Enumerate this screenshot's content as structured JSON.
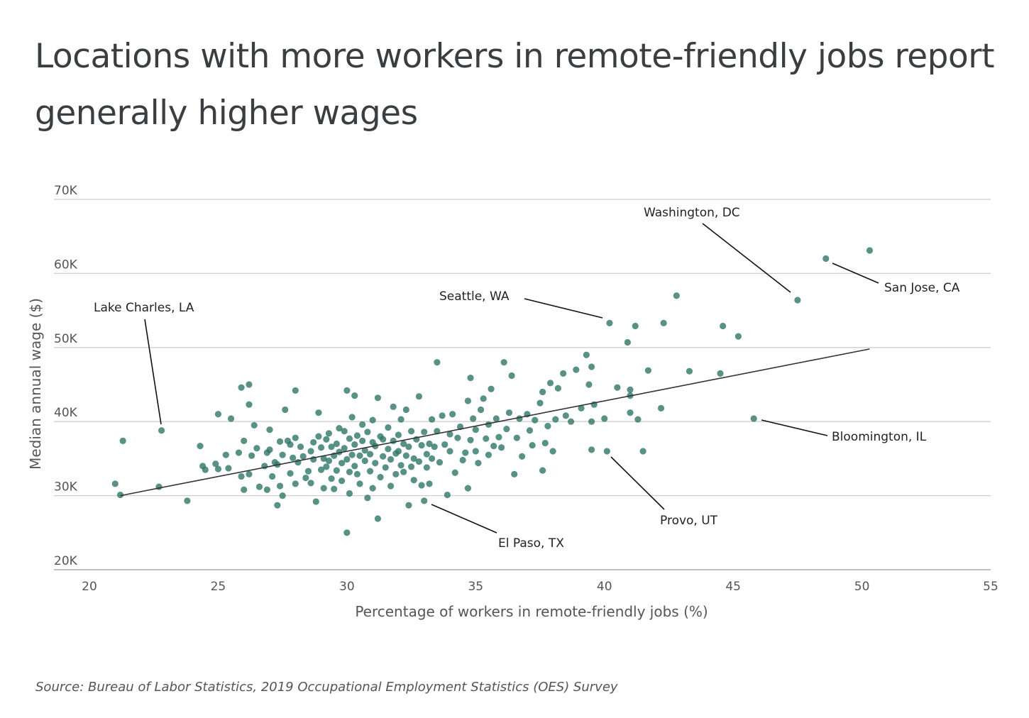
{
  "title": "Locations with more workers in remote-friendly jobs report generally higher wages",
  "source": "Source: Bureau of Labor Statistics, 2019 Occupational Employment Statistics (OES) Survey",
  "chart_data": {
    "type": "scatter",
    "xlabel": "Percentage of workers in remote-friendly jobs (%)",
    "ylabel": "Median annual wage ($)",
    "xlim": [
      20,
      55
    ],
    "ylim": [
      20000,
      70000
    ],
    "x_ticks": [
      20,
      25,
      30,
      35,
      40,
      45,
      50,
      55
    ],
    "x_tick_labels": [
      "20",
      "25",
      "30",
      "35",
      "40",
      "45",
      "50",
      "55"
    ],
    "y_ticks": [
      20000,
      30000,
      40000,
      50000,
      60000,
      70000
    ],
    "y_tick_labels": [
      "20K",
      "30K",
      "40K",
      "50K",
      "60K",
      "70K"
    ],
    "grid": "horizontal",
    "point_color": "#2e7566",
    "trend_color": "#333333",
    "trendline": {
      "x": [
        21.2,
        50.3
      ],
      "y": [
        30000,
        49800
      ]
    },
    "annotations": [
      {
        "label": "Washington, DC",
        "x": 47.5,
        "y": 56400
      },
      {
        "label": "San Jose, CA",
        "x": 48.6,
        "y": 62000
      },
      {
        "label": "Seattle, WA",
        "x": 40.2,
        "y": 53300
      },
      {
        "label": "Lake Charles, LA",
        "x": 22.8,
        "y": 38800
      },
      {
        "label": "Bloomington, IL",
        "x": 45.8,
        "y": 40400
      },
      {
        "label": "Provo, UT",
        "x": 40.1,
        "y": 36000
      },
      {
        "label": "El Paso, TX",
        "x": 33.0,
        "y": 29300
      }
    ],
    "points": [
      [
        21.0,
        31600
      ],
      [
        21.2,
        30100
      ],
      [
        21.3,
        37400
      ],
      [
        22.7,
        31200
      ],
      [
        22.8,
        38800
      ],
      [
        23.8,
        29300
      ],
      [
        24.3,
        36700
      ],
      [
        24.4,
        34000
      ],
      [
        24.5,
        33500
      ],
      [
        25.0,
        41000
      ],
      [
        24.9,
        34300
      ],
      [
        25.0,
        33600
      ],
      [
        25.3,
        35500
      ],
      [
        25.4,
        33700
      ],
      [
        25.5,
        40400
      ],
      [
        25.8,
        35800
      ],
      [
        25.9,
        44600
      ],
      [
        25.9,
        32600
      ],
      [
        26.0,
        37400
      ],
      [
        26.0,
        30800
      ],
      [
        26.2,
        45000
      ],
      [
        26.2,
        42300
      ],
      [
        26.2,
        32900
      ],
      [
        26.3,
        35400
      ],
      [
        26.4,
        39500
      ],
      [
        26.5,
        36400
      ],
      [
        26.6,
        31200
      ],
      [
        26.8,
        34000
      ],
      [
        26.9,
        30800
      ],
      [
        26.9,
        35800
      ],
      [
        27.0,
        38900
      ],
      [
        27.0,
        36200
      ],
      [
        27.1,
        32600
      ],
      [
        27.2,
        34500
      ],
      [
        27.3,
        28700
      ],
      [
        27.3,
        34200
      ],
      [
        27.4,
        31300
      ],
      [
        27.4,
        37300
      ],
      [
        27.5,
        35500
      ],
      [
        27.5,
        30000
      ],
      [
        27.6,
        41600
      ],
      [
        27.7,
        37400
      ],
      [
        27.8,
        36900
      ],
      [
        27.8,
        33000
      ],
      [
        27.9,
        35100
      ],
      [
        28.0,
        44200
      ],
      [
        28.0,
        37800
      ],
      [
        28.0,
        31600
      ],
      [
        28.1,
        34500
      ],
      [
        28.2,
        36600
      ],
      [
        28.3,
        35300
      ],
      [
        28.4,
        32400
      ],
      [
        28.5,
        33300
      ],
      [
        28.6,
        36000
      ],
      [
        28.6,
        31700
      ],
      [
        28.7,
        37200
      ],
      [
        28.7,
        34900
      ],
      [
        28.8,
        29200
      ],
      [
        28.9,
        41200
      ],
      [
        28.9,
        38000
      ],
      [
        29.0,
        33500
      ],
      [
        29.0,
        36500
      ],
      [
        29.1,
        35000
      ],
      [
        29.1,
        31000
      ],
      [
        29.2,
        37600
      ],
      [
        29.2,
        33900
      ],
      [
        29.3,
        34700
      ],
      [
        29.3,
        38400
      ],
      [
        29.4,
        36600
      ],
      [
        29.4,
        32300
      ],
      [
        29.5,
        35400
      ],
      [
        29.5,
        30900
      ],
      [
        29.6,
        33400
      ],
      [
        29.6,
        37000
      ],
      [
        29.7,
        39100
      ],
      [
        29.7,
        35900
      ],
      [
        29.8,
        34400
      ],
      [
        29.8,
        32000
      ],
      [
        29.9,
        36400
      ],
      [
        29.9,
        38700
      ],
      [
        30.0,
        44200
      ],
      [
        30.0,
        25000
      ],
      [
        30.0,
        34900
      ],
      [
        30.1,
        33200
      ],
      [
        30.1,
        37700
      ],
      [
        30.1,
        30300
      ],
      [
        30.2,
        35500
      ],
      [
        30.2,
        40600
      ],
      [
        30.3,
        43500
      ],
      [
        30.3,
        36900
      ],
      [
        30.3,
        34000
      ],
      [
        30.4,
        38100
      ],
      [
        30.4,
        32900
      ],
      [
        30.5,
        35400
      ],
      [
        30.5,
        31600
      ],
      [
        30.6,
        37400
      ],
      [
        30.6,
        39600
      ],
      [
        30.7,
        34700
      ],
      [
        30.7,
        36100
      ],
      [
        30.8,
        29700
      ],
      [
        30.8,
        38600
      ],
      [
        30.9,
        33300
      ],
      [
        30.9,
        35600
      ],
      [
        31.0,
        31000
      ],
      [
        31.0,
        37200
      ],
      [
        31.0,
        40200
      ],
      [
        31.1,
        34400
      ],
      [
        31.1,
        36700
      ],
      [
        31.2,
        43200
      ],
      [
        31.2,
        26900
      ],
      [
        31.3,
        38000
      ],
      [
        31.3,
        32500
      ],
      [
        31.4,
        35300
      ],
      [
        31.4,
        37600
      ],
      [
        31.5,
        33800
      ],
      [
        31.6,
        39200
      ],
      [
        31.6,
        36300
      ],
      [
        31.7,
        31300
      ],
      [
        31.7,
        34900
      ],
      [
        31.8,
        42000
      ],
      [
        31.8,
        37400
      ],
      [
        31.9,
        35700
      ],
      [
        31.9,
        32900
      ],
      [
        32.0,
        38200
      ],
      [
        32.0,
        36000
      ],
      [
        32.1,
        34100
      ],
      [
        32.1,
        40300
      ],
      [
        32.2,
        33200
      ],
      [
        32.2,
        37000
      ],
      [
        32.3,
        35400
      ],
      [
        32.3,
        41600
      ],
      [
        32.4,
        28700
      ],
      [
        32.4,
        36600
      ],
      [
        32.5,
        33900
      ],
      [
        32.5,
        38700
      ],
      [
        32.6,
        35000
      ],
      [
        32.6,
        32100
      ],
      [
        32.7,
        37600
      ],
      [
        32.8,
        43400
      ],
      [
        32.8,
        34600
      ],
      [
        32.9,
        31400
      ],
      [
        32.9,
        36800
      ],
      [
        33.0,
        29300
      ],
      [
        33.0,
        38600
      ],
      [
        33.1,
        35600
      ],
      [
        33.1,
        33800
      ],
      [
        33.2,
        31600
      ],
      [
        33.2,
        37000
      ],
      [
        33.3,
        40300
      ],
      [
        33.3,
        35000
      ],
      [
        33.4,
        36600
      ],
      [
        33.5,
        48000
      ],
      [
        33.5,
        38700
      ],
      [
        33.6,
        34500
      ],
      [
        33.7,
        40800
      ],
      [
        33.8,
        36900
      ],
      [
        33.9,
        30100
      ],
      [
        34.0,
        38300
      ],
      [
        34.0,
        36000
      ],
      [
        34.1,
        41000
      ],
      [
        34.2,
        33100
      ],
      [
        34.3,
        37800
      ],
      [
        34.4,
        39300
      ],
      [
        34.5,
        34800
      ],
      [
        34.6,
        35800
      ],
      [
        34.7,
        42800
      ],
      [
        34.7,
        31000
      ],
      [
        34.8,
        45900
      ],
      [
        34.8,
        37500
      ],
      [
        34.9,
        40400
      ],
      [
        35.0,
        36000
      ],
      [
        35.0,
        38900
      ],
      [
        35.1,
        34400
      ],
      [
        35.2,
        41600
      ],
      [
        35.3,
        43100
      ],
      [
        35.4,
        37700
      ],
      [
        35.5,
        35500
      ],
      [
        35.5,
        39600
      ],
      [
        35.6,
        44400
      ],
      [
        35.7,
        36700
      ],
      [
        35.8,
        40400
      ],
      [
        35.9,
        37900
      ],
      [
        36.0,
        36500
      ],
      [
        36.1,
        48000
      ],
      [
        36.2,
        39000
      ],
      [
        36.3,
        41200
      ],
      [
        36.4,
        46200
      ],
      [
        36.5,
        32900
      ],
      [
        36.6,
        37800
      ],
      [
        36.7,
        40400
      ],
      [
        36.8,
        35300
      ],
      [
        37.0,
        41000
      ],
      [
        37.1,
        38800
      ],
      [
        37.2,
        36800
      ],
      [
        37.3,
        40200
      ],
      [
        37.5,
        42500
      ],
      [
        37.6,
        44000
      ],
      [
        37.6,
        33400
      ],
      [
        37.7,
        37100
      ],
      [
        37.8,
        39400
      ],
      [
        37.9,
        45200
      ],
      [
        38.0,
        36000
      ],
      [
        38.1,
        40300
      ],
      [
        38.2,
        44500
      ],
      [
        38.4,
        46500
      ],
      [
        38.5,
        40800
      ],
      [
        38.7,
        40000
      ],
      [
        38.9,
        47000
      ],
      [
        39.1,
        41800
      ],
      [
        39.3,
        49000
      ],
      [
        39.4,
        45000
      ],
      [
        39.5,
        47400
      ],
      [
        39.5,
        40000
      ],
      [
        39.5,
        36200
      ],
      [
        39.6,
        42300
      ],
      [
        40.0,
        40400
      ],
      [
        40.1,
        36000
      ],
      [
        40.2,
        53300
      ],
      [
        40.5,
        44600
      ],
      [
        40.9,
        50700
      ],
      [
        41.0,
        44300
      ],
      [
        41.0,
        43500
      ],
      [
        41.0,
        41200
      ],
      [
        41.2,
        52900
      ],
      [
        41.3,
        40300
      ],
      [
        41.5,
        36000
      ],
      [
        41.7,
        46900
      ],
      [
        42.2,
        41800
      ],
      [
        42.3,
        53300
      ],
      [
        42.8,
        57000
      ],
      [
        43.3,
        46800
      ],
      [
        44.5,
        46500
      ],
      [
        44.6,
        52900
      ],
      [
        45.2,
        51500
      ],
      [
        45.8,
        40400
      ],
      [
        47.5,
        56400
      ],
      [
        48.6,
        62000
      ],
      [
        50.3,
        63100
      ]
    ]
  }
}
